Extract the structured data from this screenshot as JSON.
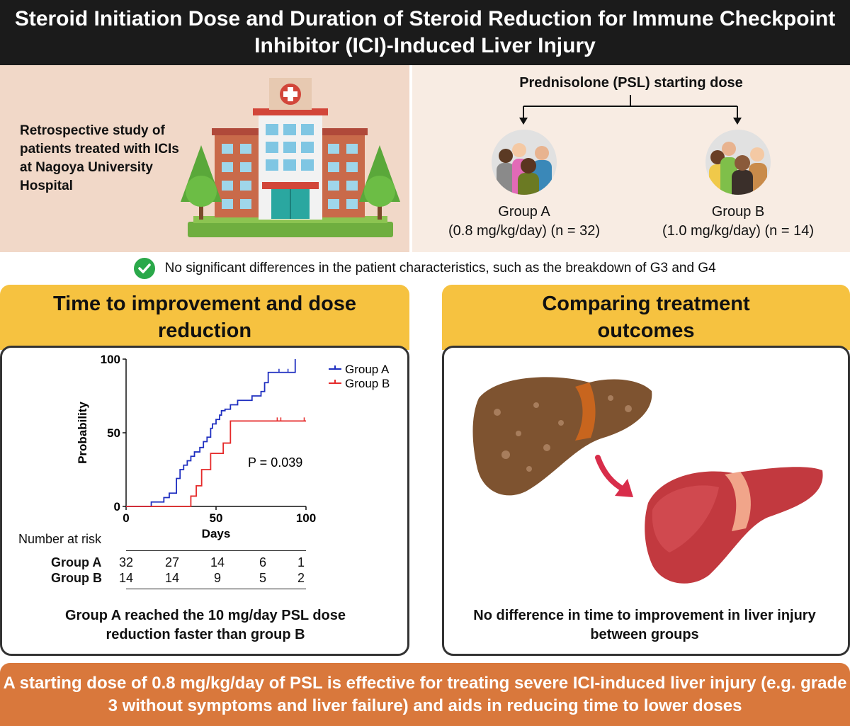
{
  "title": "Steroid Initiation Dose and Duration of Steroid Reduction for Immune Checkpoint Inhibitor (ICI)-Induced Liver Injury",
  "study": {
    "text": "Retrospective study of patients treated with ICIs at Nagoya University Hospital"
  },
  "psl": {
    "title": "Prednisolone (PSL) starting dose",
    "group_a_name": "Group A",
    "group_a_detail": "(0.8 mg/kg/day) (n = 32)",
    "group_b_name": "Group B",
    "group_b_detail": "(1.0 mg/kg/day) (n = 14)"
  },
  "note": "No significant differences in the patient characteristics, such as the breakdown of G3 and G4",
  "left_panel": {
    "heading": "Time to improvement and dose reduction",
    "caption": "Group A reached the 10 mg/day PSL dose reduction faster than group B"
  },
  "right_panel": {
    "heading": "Comparing treatment outcomes",
    "caption": "No difference in time to improvement in liver injury between groups"
  },
  "risk_table": {
    "title": "Number at risk",
    "rows": [
      {
        "label": "Group A",
        "values": [
          "32",
          "27",
          "14",
          "6",
          "1"
        ]
      },
      {
        "label": "Group B",
        "values": [
          "14",
          "14",
          "9",
          "5",
          "2"
        ]
      }
    ]
  },
  "conclusion": "A starting dose of 0.8 mg/kg/day of PSL is effective for treating severe ICI-induced liver injury (e.g. grade 3 without symptoms and liver failure) and aids in reducing time to lower doses",
  "colors": {
    "group_a": "#1f2fc0",
    "group_b": "#e52a2a",
    "header_bg": "#1b1b1b",
    "panel_head": "#f6c240",
    "conclusion_bg": "#d9783c",
    "check": "#2aa84a"
  },
  "chart_data": {
    "type": "line",
    "chart_kind": "kaplan-meier step",
    "xlabel": "Days",
    "ylabel": "Probability",
    "xlim": [
      0,
      100
    ],
    "ylim": [
      0,
      100
    ],
    "x_ticks": [
      "0",
      "50",
      "100"
    ],
    "y_ticks": [
      "0",
      "50",
      "100"
    ],
    "annotation": "P = 0.039",
    "legend_position": "top-right",
    "series": [
      {
        "name": "Group A",
        "color": "#1f2fc0",
        "x": [
          0,
          14,
          21,
          24,
          28,
          30,
          32,
          34,
          36,
          38,
          41,
          43,
          45,
          47,
          48,
          50,
          52,
          53,
          55,
          58,
          62,
          65,
          70,
          75,
          77,
          79,
          94,
          94
        ],
        "y": [
          0,
          3,
          6,
          9,
          19,
          25,
          28,
          31,
          34,
          37,
          40,
          44,
          47,
          53,
          56,
          59,
          62,
          65,
          66,
          69,
          72,
          72,
          75,
          78,
          84,
          91,
          91,
          100
        ]
      },
      {
        "name": "Group B",
        "color": "#e52a2a",
        "x": [
          0,
          36,
          39,
          42,
          47,
          54,
          58,
          100
        ],
        "y": [
          0,
          7,
          14,
          25,
          36,
          43,
          58,
          58
        ]
      }
    ]
  }
}
